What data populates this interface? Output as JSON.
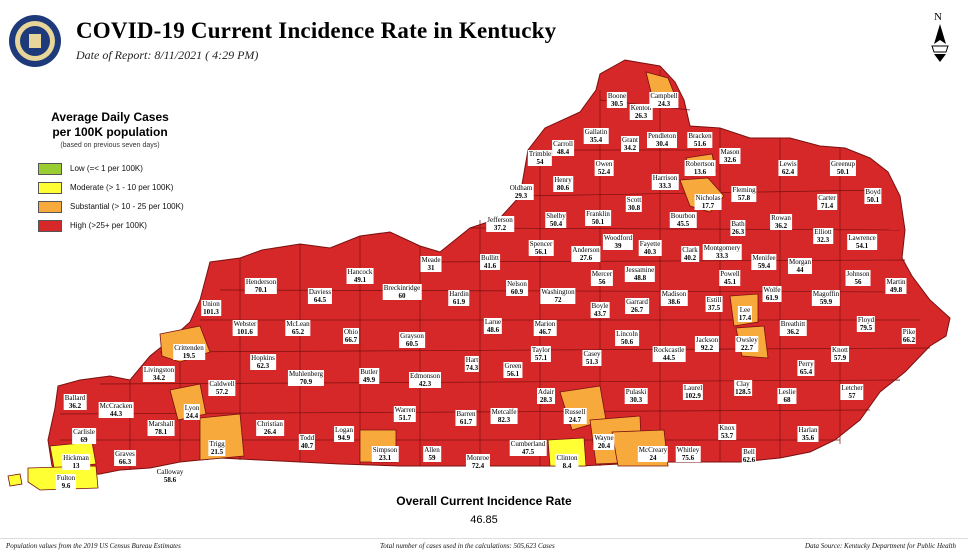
{
  "header": {
    "title": "COVID-19 Current Incidence Rate in Kentucky",
    "date": "Date of Report: 8/11/2021 ( 4:29 PM)"
  },
  "legend": {
    "title_line1": "Average Daily Cases",
    "title_line2": "per 100K population",
    "note": "(based on previous seven days)",
    "items": [
      {
        "label": "Low (=< 1 per 100K)",
        "color": "#9ACD32"
      },
      {
        "label": "Moderate (> 1 - 10 per 100K)",
        "color": "#FFFF33"
      },
      {
        "label": "Substantial (> 10 - 25 per 100K)",
        "color": "#F7A93B"
      },
      {
        "label": "High (>25+ per 100K)",
        "color": "#D62828"
      }
    ]
  },
  "colors": {
    "high": "#D62828",
    "substantial": "#F7A93B",
    "moderate": "#FFFF33",
    "border": "#7a1010"
  },
  "counties": [
    {
      "name": "Boone",
      "rate": "30.5"
    },
    {
      "name": "Kenton",
      "rate": "26.3"
    },
    {
      "name": "Campbell",
      "rate": "24.3"
    },
    {
      "name": "Gallatin",
      "rate": "35.4"
    },
    {
      "name": "Trimble",
      "rate": "54"
    },
    {
      "name": "Carroll",
      "rate": "48.4"
    },
    {
      "name": "Grant",
      "rate": "34.2"
    },
    {
      "name": "Pendleton",
      "rate": "30.4"
    },
    {
      "name": "Bracken",
      "rate": "51.6"
    },
    {
      "name": "Mason",
      "rate": "32.6"
    },
    {
      "name": "Owen",
      "rate": "52.4"
    },
    {
      "name": "Henry",
      "rate": "80.6"
    },
    {
      "name": "Robertson",
      "rate": "13.6"
    },
    {
      "name": "Harrison",
      "rate": "33.3"
    },
    {
      "name": "Lewis",
      "rate": "62.4"
    },
    {
      "name": "Greenup",
      "rate": "50.1"
    },
    {
      "name": "Oldham",
      "rate": "29.3"
    },
    {
      "name": "Scott",
      "rate": "30.8"
    },
    {
      "name": "Fleming",
      "rate": "57.8"
    },
    {
      "name": "Carter",
      "rate": "71.4"
    },
    {
      "name": "Boyd",
      "rate": "50.1"
    },
    {
      "name": "Nicholas",
      "rate": "17.7"
    },
    {
      "name": "Shelby",
      "rate": "50.4"
    },
    {
      "name": "Franklin",
      "rate": "50.1"
    },
    {
      "name": "Bourbon",
      "rate": "45.5"
    },
    {
      "name": "Jefferson",
      "rate": "37.2"
    },
    {
      "name": "Bath",
      "rate": "26.3"
    },
    {
      "name": "Rowan",
      "rate": "36.2"
    },
    {
      "name": "Elliott",
      "rate": "32.3"
    },
    {
      "name": "Lawrence",
      "rate": "54.1"
    },
    {
      "name": "Woodford",
      "rate": "39"
    },
    {
      "name": "Spencer",
      "rate": "56.1"
    },
    {
      "name": "Anderson",
      "rate": "27.6"
    },
    {
      "name": "Fayette",
      "rate": "40.3"
    },
    {
      "name": "Clark",
      "rate": "40.2"
    },
    {
      "name": "Montgomery",
      "rate": "33.3"
    },
    {
      "name": "Menifee",
      "rate": "59.4"
    },
    {
      "name": "Morgan",
      "rate": "44"
    },
    {
      "name": "Johnson",
      "rate": "56"
    },
    {
      "name": "Martin",
      "rate": "49.8"
    },
    {
      "name": "Hancock",
      "rate": "49.1"
    },
    {
      "name": "Meade",
      "rate": "31"
    },
    {
      "name": "Bullitt",
      "rate": "41.6"
    },
    {
      "name": "Nelson",
      "rate": "60.9"
    },
    {
      "name": "Mercer",
      "rate": "56"
    },
    {
      "name": "Jessamine",
      "rate": "48.8"
    },
    {
      "name": "Powell",
      "rate": "45.1"
    },
    {
      "name": "Wolfe",
      "rate": "61.9"
    },
    {
      "name": "Magoffin",
      "rate": "59.9"
    },
    {
      "name": "Henderson",
      "rate": "70.1"
    },
    {
      "name": "Daviess",
      "rate": "64.5"
    },
    {
      "name": "Breckinridge",
      "rate": "60"
    },
    {
      "name": "Washington",
      "rate": "72"
    },
    {
      "name": "Madison",
      "rate": "38.6"
    },
    {
      "name": "Estill",
      "rate": "37.5"
    },
    {
      "name": "Hardin",
      "rate": "61.9"
    },
    {
      "name": "Boyle",
      "rate": "43.7"
    },
    {
      "name": "Garrard",
      "rate": "26.7"
    },
    {
      "name": "Lee",
      "rate": "17.4"
    },
    {
      "name": "Breathitt",
      "rate": "36.2"
    },
    {
      "name": "Floyd",
      "rate": "79.5"
    },
    {
      "name": "Union",
      "rate": "101.3"
    },
    {
      "name": "Webster",
      "rate": "101.6"
    },
    {
      "name": "McLean",
      "rate": "65.2"
    },
    {
      "name": "Larue",
      "rate": "48.6"
    },
    {
      "name": "Marion",
      "rate": "46.7"
    },
    {
      "name": "Lincoln",
      "rate": "50.6"
    },
    {
      "name": "Jackson",
      "rate": "92.2"
    },
    {
      "name": "Owsley",
      "rate": "22.7"
    },
    {
      "name": "Knott",
      "rate": "57.9"
    },
    {
      "name": "Pike",
      "rate": "66.2"
    },
    {
      "name": "Crittenden",
      "rate": "19.5"
    },
    {
      "name": "Ohio",
      "rate": "66.7"
    },
    {
      "name": "Grayson",
      "rate": "60.5"
    },
    {
      "name": "Taylor",
      "rate": "57.1"
    },
    {
      "name": "Casey",
      "rate": "51.3"
    },
    {
      "name": "Rockcastle",
      "rate": "44.5"
    },
    {
      "name": "Hopkins",
      "rate": "62.3"
    },
    {
      "name": "Livingston",
      "rate": "34.2"
    },
    {
      "name": "Hart",
      "rate": "74.3"
    },
    {
      "name": "Green",
      "rate": "56.1"
    },
    {
      "name": "Perry",
      "rate": "65.4"
    },
    {
      "name": "Muhlenberg",
      "rate": "70.9"
    },
    {
      "name": "Butler",
      "rate": "49.9"
    },
    {
      "name": "Edmonson",
      "rate": "42.3"
    },
    {
      "name": "Clay",
      "rate": "128.5"
    },
    {
      "name": "Leslie",
      "rate": "68"
    },
    {
      "name": "Letcher",
      "rate": "57"
    },
    {
      "name": "Caldwell",
      "rate": "57.2"
    },
    {
      "name": "Laurel",
      "rate": "102.9"
    },
    {
      "name": "Ballard",
      "rate": "36.2"
    },
    {
      "name": "McCracken",
      "rate": "44.3"
    },
    {
      "name": "Lyon",
      "rate": "24.4"
    },
    {
      "name": "Adair",
      "rate": "28.3"
    },
    {
      "name": "Russell",
      "rate": "24.7"
    },
    {
      "name": "Pulaski",
      "rate": "30.3"
    },
    {
      "name": "Marshall",
      "rate": "78.1"
    },
    {
      "name": "Christian",
      "rate": "26.4"
    },
    {
      "name": "Warren",
      "rate": "51.7"
    },
    {
      "name": "Barren",
      "rate": "61.7"
    },
    {
      "name": "Metcalfe",
      "rate": "82.3"
    },
    {
      "name": "Knox",
      "rate": "53.7"
    },
    {
      "name": "Harlan",
      "rate": "35.6"
    },
    {
      "name": "Carlisle",
      "rate": "69"
    },
    {
      "name": "Trigg",
      "rate": "21.5"
    },
    {
      "name": "Todd",
      "rate": "40.7"
    },
    {
      "name": "Logan",
      "rate": "94.9"
    },
    {
      "name": "Wayne",
      "rate": "20.4"
    },
    {
      "name": "McCreary",
      "rate": "24"
    },
    {
      "name": "Hickman",
      "rate": "13"
    },
    {
      "name": "Graves",
      "rate": "66.3"
    },
    {
      "name": "Simpson",
      "rate": "23.1"
    },
    {
      "name": "Allen",
      "rate": "59"
    },
    {
      "name": "Cumberland",
      "rate": "47.5"
    },
    {
      "name": "Clinton",
      "rate": "8.4"
    },
    {
      "name": "Whitley",
      "rate": "75.6"
    },
    {
      "name": "Bell",
      "rate": "62.6"
    },
    {
      "name": "Fulton",
      "rate": "9.6"
    },
    {
      "name": "Calloway",
      "rate": "58.6"
    },
    {
      "name": "Monroe",
      "rate": "72.4"
    }
  ],
  "overall": {
    "label": "Overall Current Incidence Rate",
    "value": "46.85"
  },
  "footer": {
    "left": "Population values from the 2019 US Census Bureau Estimates",
    "center": "Total number of cases used in the calculations: 505,623 Cases",
    "right": "Data Source: Kentucky Department for Public Health"
  },
  "north_label": "N"
}
